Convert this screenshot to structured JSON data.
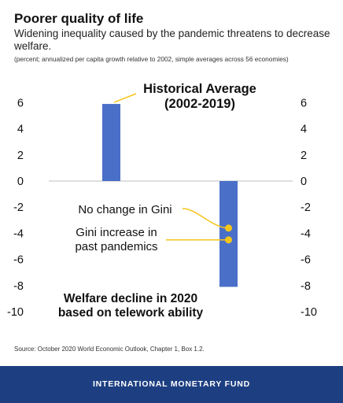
{
  "header": {
    "title": "Poorer quality of life",
    "subtitle": "Widening inequality caused by the pandemic threatens to decrease welfare.",
    "note": "(percent; annualized per capita growth relative to 2002, simple averages across 56 economies)"
  },
  "chart_data": {
    "type": "bar",
    "categories": [
      "Historical Average (2002-2019)",
      "Welfare decline in 2020 based on telework ability"
    ],
    "values": [
      5.9,
      -8.1
    ],
    "ylim": [
      -10,
      6
    ],
    "yticks": [
      6,
      4,
      2,
      0,
      -2,
      -4,
      -6,
      -8,
      -10
    ],
    "grid": false,
    "bar_color": "#4a6fc8",
    "point_color": "#f5c518",
    "points": [
      {
        "label": "No change in Gini",
        "value": -3.6
      },
      {
        "label": "Gini increase in past pandemics",
        "value": -4.5
      }
    ],
    "annotations": {
      "historical": [
        "Historical Average",
        "(2002-2019)"
      ],
      "decline": [
        "Welfare decline in 2020",
        "based on telework ability"
      ],
      "no_change": [
        "No change in Gini"
      ],
      "gini_increase": [
        "Gini increase in",
        "past pandemics"
      ]
    }
  },
  "source": "Source: October 2020 World Economic Outlook, Chapter 1, Box 1.2.",
  "footer": "INTERNATIONAL MONETARY FUND"
}
